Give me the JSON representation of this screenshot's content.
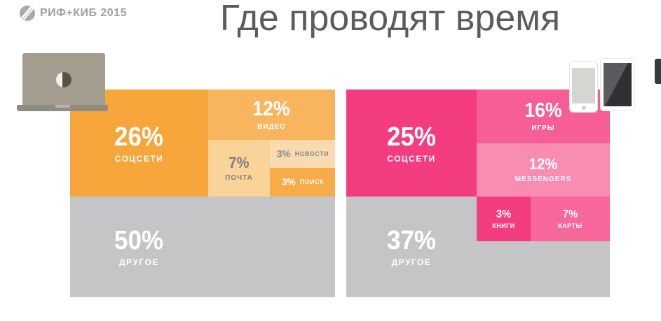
{
  "header": {
    "logo_text": "РИФ+КИБ 2015",
    "title": "Где проводят время"
  },
  "icons": {
    "left_device": "laptop-icon",
    "right_devices": [
      "smartphone-icon",
      "tablet-icon"
    ]
  },
  "colors": {
    "background": "#FFFFFF",
    "title_text": "#5B5C5E",
    "logo_gray": "#9EA0A3",
    "desktop_accent": "#F7A63C",
    "mobile_accent": "#F43C80",
    "other_gray": "#C5C5C7"
  },
  "chart_data": [
    {
      "type": "treemap",
      "device_icon": "laptop-icon",
      "segments": [
        {
          "label": "СОЦСЕТИ",
          "pct": "26%",
          "value": 26,
          "color": "#F7A63C",
          "text_color": "#FFFFFF"
        },
        {
          "label": "ВИДЕО",
          "pct": "12%",
          "value": 12,
          "color": "#F9B55E",
          "text_color": "#FFFFFF"
        },
        {
          "label": "ПОЧТА",
          "pct": "7%",
          "value": 7,
          "color": "#FAD398",
          "text_color": "#7C7C7F"
        },
        {
          "label": "НОВОСТИ",
          "pct": "3%",
          "value": 3,
          "color": "#F8DCB0",
          "text_color": "#8A8A8D"
        },
        {
          "label": "ПОИСК",
          "pct": "3%",
          "value": 3,
          "color": "#F7AC47",
          "text_color": "#FFFFFF"
        },
        {
          "label": "ДРУГОЕ",
          "pct": "50%",
          "value": 50,
          "color": "#C5C5C7",
          "text_color": "#FFFFFF"
        }
      ]
    },
    {
      "type": "treemap",
      "device_icon": "smartphone-tablet-icons",
      "segments": [
        {
          "label": "СОЦСЕТИ",
          "pct": "25%",
          "value": 25,
          "color": "#F43C80",
          "text_color": "#FFFFFF"
        },
        {
          "label": "ИГРЫ",
          "pct": "16%",
          "value": 16,
          "color": "#F75E95",
          "text_color": "#FFFFFF"
        },
        {
          "label": "MESSENGERS",
          "pct": "12%",
          "value": 12,
          "color": "#F98CB1",
          "text_color": "#FFFFFF"
        },
        {
          "label": "КНИГИ",
          "pct": "3%",
          "value": 3,
          "color": "#F43C80",
          "text_color": "#FFFFFF"
        },
        {
          "label": "КАРТЫ",
          "pct": "7%",
          "value": 7,
          "color": "#F7679B",
          "text_color": "#FFFFFF"
        },
        {
          "label": "ДРУГОЕ",
          "pct": "37%",
          "value": 37,
          "color": "#C5C5C7",
          "text_color": "#FFFFFF"
        }
      ]
    }
  ]
}
